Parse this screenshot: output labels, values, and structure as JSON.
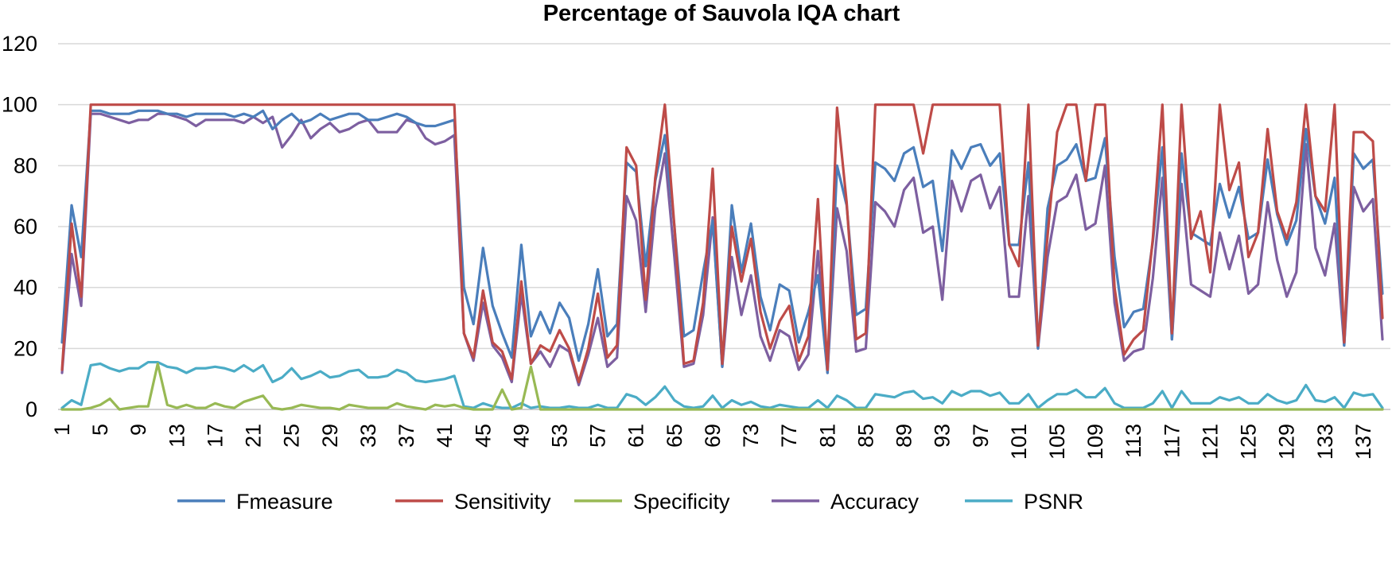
{
  "chart_data": {
    "type": "line",
    "title": "Percentage of Sauvola IQA chart",
    "xlabel": "",
    "ylabel": "",
    "ylim": [
      0,
      120
    ],
    "yticks": [
      "0",
      "20",
      "40",
      "60",
      "80",
      "100",
      "120"
    ],
    "x_tick_labels": [
      "1",
      "5",
      "9",
      "13",
      "17",
      "21",
      "25",
      "29",
      "33",
      "37",
      "41",
      "45",
      "49",
      "53",
      "57",
      "61",
      "65",
      "69",
      "73",
      "77",
      "81",
      "85",
      "89",
      "93",
      "97",
      "101",
      "105",
      "109",
      "113",
      "117",
      "121",
      "125",
      "129",
      "133",
      "137"
    ],
    "grid": true,
    "legend_position": "bottom",
    "series": [
      {
        "name": "Fmeasure",
        "color": "#4a7ebb",
        "values": [
          22,
          67,
          50,
          98,
          98,
          97,
          97,
          97,
          98,
          98,
          98,
          97,
          97,
          96,
          97,
          97,
          97,
          97,
          96,
          97,
          96,
          98,
          92,
          95,
          97,
          94,
          95,
          97,
          95,
          96,
          97,
          97,
          95,
          95,
          96,
          97,
          96,
          94,
          93,
          93,
          94,
          95,
          40,
          28,
          53,
          34,
          25,
          17,
          54,
          24,
          32,
          25,
          35,
          30,
          16,
          28,
          46,
          24,
          28,
          81,
          78,
          47,
          75,
          90,
          60,
          24,
          26,
          45,
          62,
          14,
          67,
          45,
          61,
          37,
          26,
          41,
          39,
          22,
          32,
          44,
          12,
          80,
          67,
          31,
          33,
          81,
          79,
          75,
          84,
          86,
          73,
          75,
          52,
          85,
          79,
          86,
          87,
          80,
          84,
          54,
          54,
          81,
          20,
          66,
          80,
          82,
          87,
          75,
          76,
          89,
          50,
          27,
          32,
          33,
          55,
          86,
          23,
          84,
          58,
          56,
          54,
          74,
          63,
          73,
          56,
          58,
          82,
          64,
          54,
          62,
          92,
          70,
          61,
          76,
          21,
          84,
          79,
          82,
          38
        ]
      },
      {
        "name": "Sensitivity",
        "color": "#be4b48",
        "values": [
          13,
          61,
          37,
          100,
          100,
          100,
          100,
          100,
          100,
          100,
          100,
          100,
          100,
          100,
          100,
          100,
          100,
          100,
          100,
          100,
          100,
          100,
          100,
          100,
          100,
          100,
          100,
          100,
          100,
          100,
          100,
          100,
          100,
          100,
          100,
          100,
          100,
          100,
          100,
          100,
          100,
          100,
          25,
          17,
          39,
          22,
          19,
          10,
          42,
          15,
          21,
          19,
          26,
          20,
          9,
          20,
          38,
          17,
          21,
          86,
          80,
          36,
          76,
          100,
          60,
          15,
          16,
          35,
          79,
          15,
          60,
          42,
          56,
          32,
          20,
          29,
          34,
          16,
          24,
          69,
          13,
          99,
          68,
          23,
          25,
          100,
          100,
          100,
          100,
          100,
          84,
          100,
          100,
          100,
          100,
          100,
          100,
          100,
          100,
          54,
          47,
          100,
          21,
          57,
          91,
          100,
          100,
          75,
          100,
          100,
          40,
          18,
          23,
          26,
          56,
          100,
          25,
          100,
          56,
          65,
          45,
          100,
          72,
          81,
          50,
          58,
          92,
          65,
          56,
          68,
          100,
          70,
          65,
          100,
          22,
          91,
          91,
          88,
          30
        ]
      },
      {
        "name": "Specificity",
        "color": "#98b954",
        "values": [
          0,
          0,
          0,
          0.5,
          1.5,
          3.5,
          0,
          0.5,
          1,
          1,
          15,
          1.5,
          0.5,
          1.5,
          0.5,
          0.5,
          2,
          1,
          0.5,
          2.5,
          3.5,
          4.5,
          0.5,
          0,
          0.5,
          1.5,
          1,
          0.5,
          0.5,
          0,
          1.5,
          1,
          0.5,
          0.5,
          0.5,
          2,
          1,
          0.5,
          0,
          1.5,
          1,
          1.5,
          0.5,
          0,
          0,
          0,
          6.5,
          0,
          0.5,
          14,
          0,
          0,
          0,
          0,
          0,
          0,
          0,
          0,
          0,
          0,
          0,
          0,
          0,
          0,
          0,
          0,
          0,
          0,
          0,
          0,
          0,
          0,
          0,
          0,
          0,
          0,
          0,
          0,
          0,
          0,
          0,
          0,
          0,
          0,
          0,
          0,
          0,
          0,
          0,
          0,
          0,
          0,
          0,
          0,
          0,
          0,
          0,
          0,
          0,
          0,
          0,
          0,
          0,
          0,
          0,
          0,
          0,
          0,
          0,
          0,
          0,
          0,
          0,
          0,
          0,
          0,
          0,
          0,
          0,
          0,
          0,
          0,
          0,
          0,
          0,
          0,
          0,
          0,
          0,
          0,
          0,
          0,
          0,
          0,
          0,
          0,
          0,
          0,
          0
        ]
      },
      {
        "name": "Accuracy",
        "color": "#7d5fa0",
        "values": [
          12,
          51,
          34,
          97,
          97,
          96,
          95,
          94,
          95,
          95,
          97,
          97,
          96,
          95,
          93,
          95,
          95,
          95,
          95,
          94,
          96,
          94,
          96,
          86,
          90,
          95,
          89,
          92,
          94,
          91,
          92,
          94,
          95,
          91,
          91,
          91,
          95,
          94,
          89,
          87,
          88,
          90,
          25,
          16,
          35,
          21,
          17,
          9,
          38,
          15,
          19,
          14,
          21,
          19,
          8,
          18,
          30,
          14,
          17,
          70,
          62,
          32,
          66,
          84,
          50,
          14,
          15,
          31,
          63,
          14,
          50,
          31,
          44,
          24,
          16,
          26,
          24,
          13,
          18,
          52,
          12,
          66,
          52,
          19,
          20,
          68,
          65,
          60,
          72,
          76,
          58,
          60,
          36,
          75,
          65,
          75,
          77,
          66,
          73,
          37,
          37,
          70,
          20,
          50,
          68,
          70,
          77,
          59,
          61,
          80,
          35,
          16,
          19,
          20,
          43,
          76,
          23,
          74,
          41,
          39,
          37,
          58,
          46,
          57,
          38,
          41,
          68,
          49,
          37,
          45,
          87,
          53,
          44,
          61,
          21,
          73,
          65,
          69,
          23
        ]
      },
      {
        "name": "PSNR",
        "color": "#4bacc6",
        "values": [
          0.5,
          3,
          1.5,
          14.5,
          15,
          13.5,
          12.5,
          13.5,
          13.5,
          15.5,
          15.5,
          14,
          13.5,
          12,
          13.5,
          13.5,
          14,
          13.5,
          12.5,
          14.5,
          12.5,
          14.5,
          9,
          10.5,
          13.5,
          10,
          11,
          12.5,
          10.5,
          11,
          12.5,
          13,
          10.5,
          10.5,
          11,
          13,
          12,
          9.5,
          9,
          9.5,
          10,
          11,
          1,
          0.5,
          2,
          1,
          0.5,
          0.5,
          2,
          0.5,
          1,
          0.5,
          0.5,
          1,
          0.5,
          0.5,
          1.5,
          0.5,
          0.5,
          5,
          4,
          1.5,
          4,
          7.5,
          3,
          1,
          0.5,
          1,
          4.5,
          0.5,
          3,
          1.5,
          2.5,
          1,
          0.5,
          1.5,
          1,
          0.5,
          0.5,
          3,
          0.5,
          4.5,
          3,
          0.5,
          0.5,
          5,
          4.5,
          4,
          5.5,
          6,
          3.5,
          4,
          2,
          6,
          4.5,
          6,
          6,
          4.5,
          5.5,
          2,
          2,
          5,
          0.5,
          3,
          5,
          5,
          6.5,
          4,
          4,
          7,
          2,
          0.5,
          0.5,
          0.5,
          2,
          6,
          0.5,
          6,
          2,
          2,
          2,
          4,
          3,
          4,
          2,
          2,
          5,
          3,
          2,
          3,
          8,
          3,
          2.5,
          4,
          0.5,
          5.5,
          4.5,
          5,
          0.5
        ]
      }
    ]
  }
}
